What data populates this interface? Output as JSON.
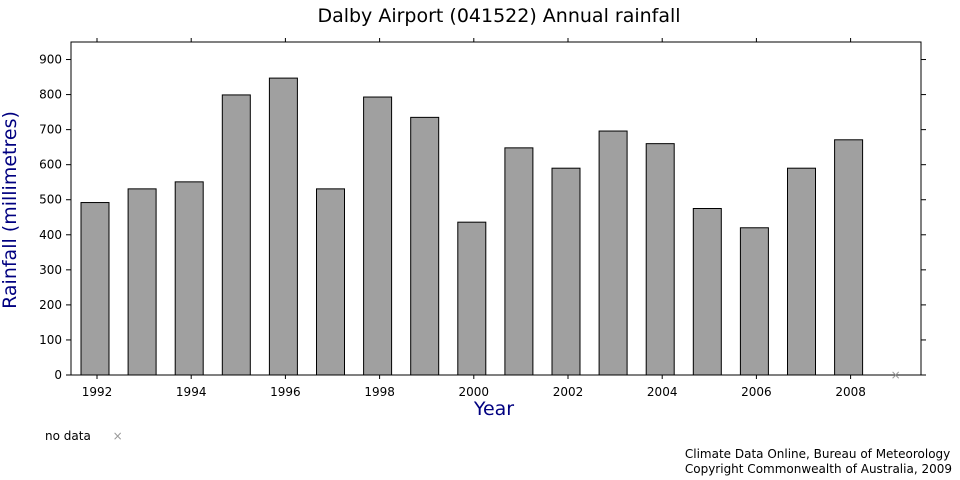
{
  "chart_data": {
    "type": "bar",
    "title": "Dalby Airport (041522) Annual rainfall",
    "xlabel": "Year",
    "ylabel": "Rainfall (millimetres)",
    "ylim": [
      0,
      950
    ],
    "yticks": [
      0,
      100,
      200,
      300,
      400,
      500,
      600,
      700,
      800,
      900
    ],
    "xticks": [
      "1992",
      "1994",
      "1996",
      "1998",
      "2000",
      "2002",
      "2004",
      "2006",
      "2008"
    ],
    "categories": [
      "1992",
      "1993",
      "1994",
      "1995",
      "1996",
      "1997",
      "1998",
      "1999",
      "2000",
      "2001",
      "2002",
      "2003",
      "2004",
      "2005",
      "2006",
      "2007",
      "2008",
      "2009"
    ],
    "values": [
      492,
      531,
      551,
      799,
      847,
      531,
      793,
      735,
      436,
      648,
      590,
      696,
      660,
      475,
      420,
      590,
      671,
      null
    ],
    "no_data_years": [
      "2009"
    ],
    "bar_color": "#a0a0a0",
    "bar_edge_color": "#000000",
    "grid": false,
    "legend_position": "bottom-left"
  },
  "legend": {
    "no_data_label": "no data",
    "no_data_marker": "×"
  },
  "credit": {
    "line1": "Climate Data Online, Bureau of Meteorology",
    "line2": "Copyright Commonwealth of Australia, 2009"
  },
  "colors": {
    "axis_label": "#000080",
    "text": "#000000",
    "no_data_marker": "#999999"
  }
}
